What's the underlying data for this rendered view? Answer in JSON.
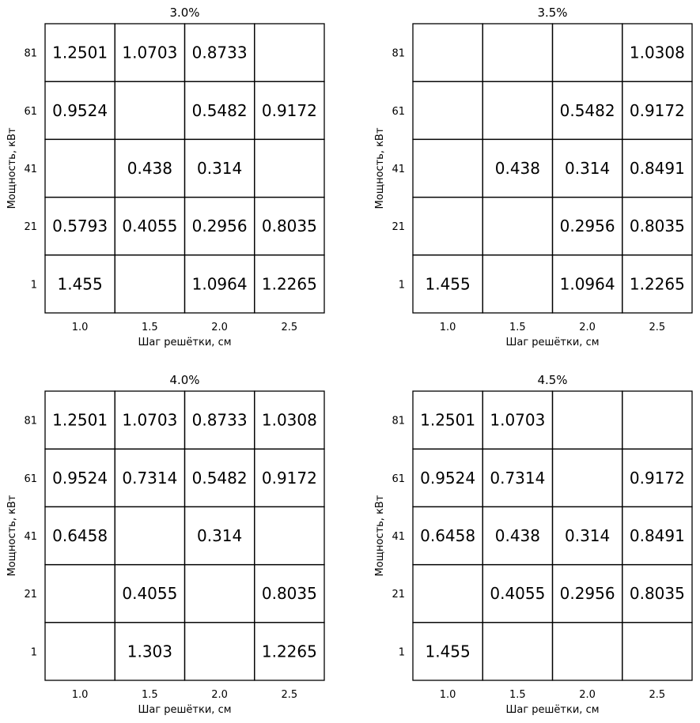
{
  "chart_data": [
    {
      "type": "table",
      "title": "3.0%",
      "xlabel": "Шаг решётки, см",
      "ylabel": "Мощность, кВт",
      "x_categories": [
        "1.0",
        "1.5",
        "2.0",
        "2.5"
      ],
      "y_categories": [
        "81",
        "61",
        "41",
        "21",
        "1"
      ],
      "cells": [
        [
          "1.2501",
          "1.0703",
          "0.8733",
          ""
        ],
        [
          "0.9524",
          "",
          "0.5482",
          "0.9172"
        ],
        [
          "",
          "0.438",
          "0.314",
          ""
        ],
        [
          "0.5793",
          "0.4055",
          "0.2956",
          "0.8035"
        ],
        [
          "1.455",
          "",
          "1.0964",
          "1.2265"
        ]
      ]
    },
    {
      "type": "table",
      "title": "3.5%",
      "xlabel": "Шаг решётки, см",
      "ylabel": "Мощность, кВт",
      "x_categories": [
        "1.0",
        "1.5",
        "2.0",
        "2.5"
      ],
      "y_categories": [
        "81",
        "61",
        "41",
        "21",
        "1"
      ],
      "cells": [
        [
          "",
          "",
          "",
          "1.0308"
        ],
        [
          "",
          "",
          "0.5482",
          "0.9172"
        ],
        [
          "",
          "0.438",
          "0.314",
          "0.8491"
        ],
        [
          "",
          "",
          "0.2956",
          "0.8035"
        ],
        [
          "1.455",
          "",
          "1.0964",
          "1.2265"
        ]
      ]
    },
    {
      "type": "table",
      "title": "4.0%",
      "xlabel": "Шаг решётки, см",
      "ylabel": "Мощность, кВт",
      "x_categories": [
        "1.0",
        "1.5",
        "2.0",
        "2.5"
      ],
      "y_categories": [
        "81",
        "61",
        "41",
        "21",
        "1"
      ],
      "cells": [
        [
          "1.2501",
          "1.0703",
          "0.8733",
          "1.0308"
        ],
        [
          "0.9524",
          "0.7314",
          "0.5482",
          "0.9172"
        ],
        [
          "0.6458",
          "",
          "0.314",
          ""
        ],
        [
          "",
          "0.4055",
          "",
          "0.8035"
        ],
        [
          "",
          "1.303",
          "",
          "1.2265"
        ]
      ]
    },
    {
      "type": "table",
      "title": "4.5%",
      "xlabel": "Шаг решётки, см",
      "ylabel": "Мощность, кВт",
      "x_categories": [
        "1.0",
        "1.5",
        "2.0",
        "2.5"
      ],
      "y_categories": [
        "81",
        "61",
        "41",
        "21",
        "1"
      ],
      "cells": [
        [
          "1.2501",
          "1.0703",
          "",
          ""
        ],
        [
          "0.9524",
          "0.7314",
          "",
          "0.9172"
        ],
        [
          "0.6458",
          "0.438",
          "0.314",
          "0.8491"
        ],
        [
          "",
          "0.4055",
          "0.2956",
          "0.8035"
        ],
        [
          "1.455",
          "",
          "",
          ""
        ]
      ]
    }
  ]
}
